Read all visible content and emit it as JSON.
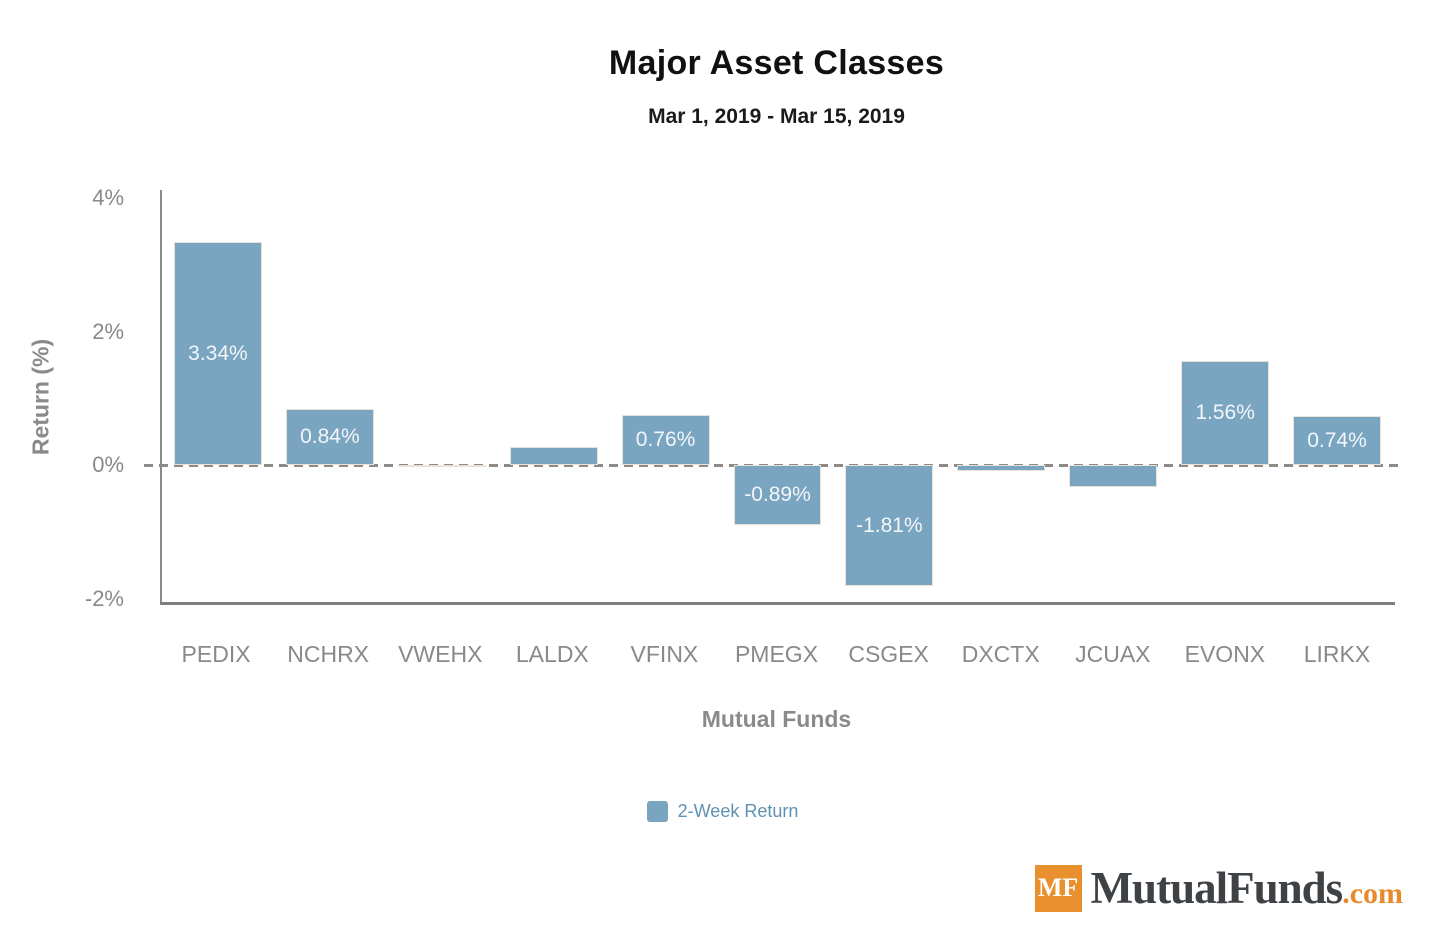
{
  "title": "Major Asset Classes",
  "subtitle": "Mar 1, 2019 - Mar 15, 2019",
  "chart_data": {
    "type": "bar",
    "categories": [
      "PEDIX",
      "NCHRX",
      "VWEHX",
      "LALDX",
      "VFINX",
      "PMEGX",
      "CSGEX",
      "DXCTX",
      "JCUAX",
      "EVONX",
      "LIRKX"
    ],
    "series": [
      {
        "name": "2-Week Return",
        "values": [
          3.34,
          0.84,
          0.01,
          0.28,
          0.76,
          -0.89,
          -1.81,
          -0.09,
          -0.33,
          1.56,
          0.74
        ],
        "labels": [
          "3.34%",
          "0.84%",
          "",
          "",
          "0.76%",
          "-0.89%",
          "-1.81%",
          "",
          "",
          "1.56%",
          "0.74%"
        ]
      }
    ],
    "title": "Major Asset Classes",
    "subtitle": "Mar 1, 2019 - Mar 15, 2019",
    "xlabel": "Mutual Funds",
    "ylabel": "Return (%)",
    "ylim": [
      -2.06,
      4.12
    ],
    "yticks": [
      {
        "value": 4,
        "label": "4%"
      },
      {
        "value": 2,
        "label": "2%"
      },
      {
        "value": 0,
        "label": "0%"
      },
      {
        "value": -2,
        "label": "-2%"
      }
    ],
    "grid": false,
    "zero_line_style": "dashed",
    "legend_position": "bottom-center",
    "bar_color": "#7aa5c1"
  },
  "legend": {
    "label": "2-Week Return"
  },
  "branding": {
    "badge": "MF",
    "name": "MutualFunds",
    "tld": ".com"
  },
  "colors": {
    "bar": "#7aa5c1",
    "bar_value_text": "#f2f6f9",
    "legend_text": "#5e92b2",
    "axis_line": "#7f7f7f",
    "tick_text": "#898989",
    "axis_title_text": "#8a8a8a",
    "title_text": "#111111",
    "logo_orange": "#e8902e",
    "logo_text": "#3f4245"
  }
}
